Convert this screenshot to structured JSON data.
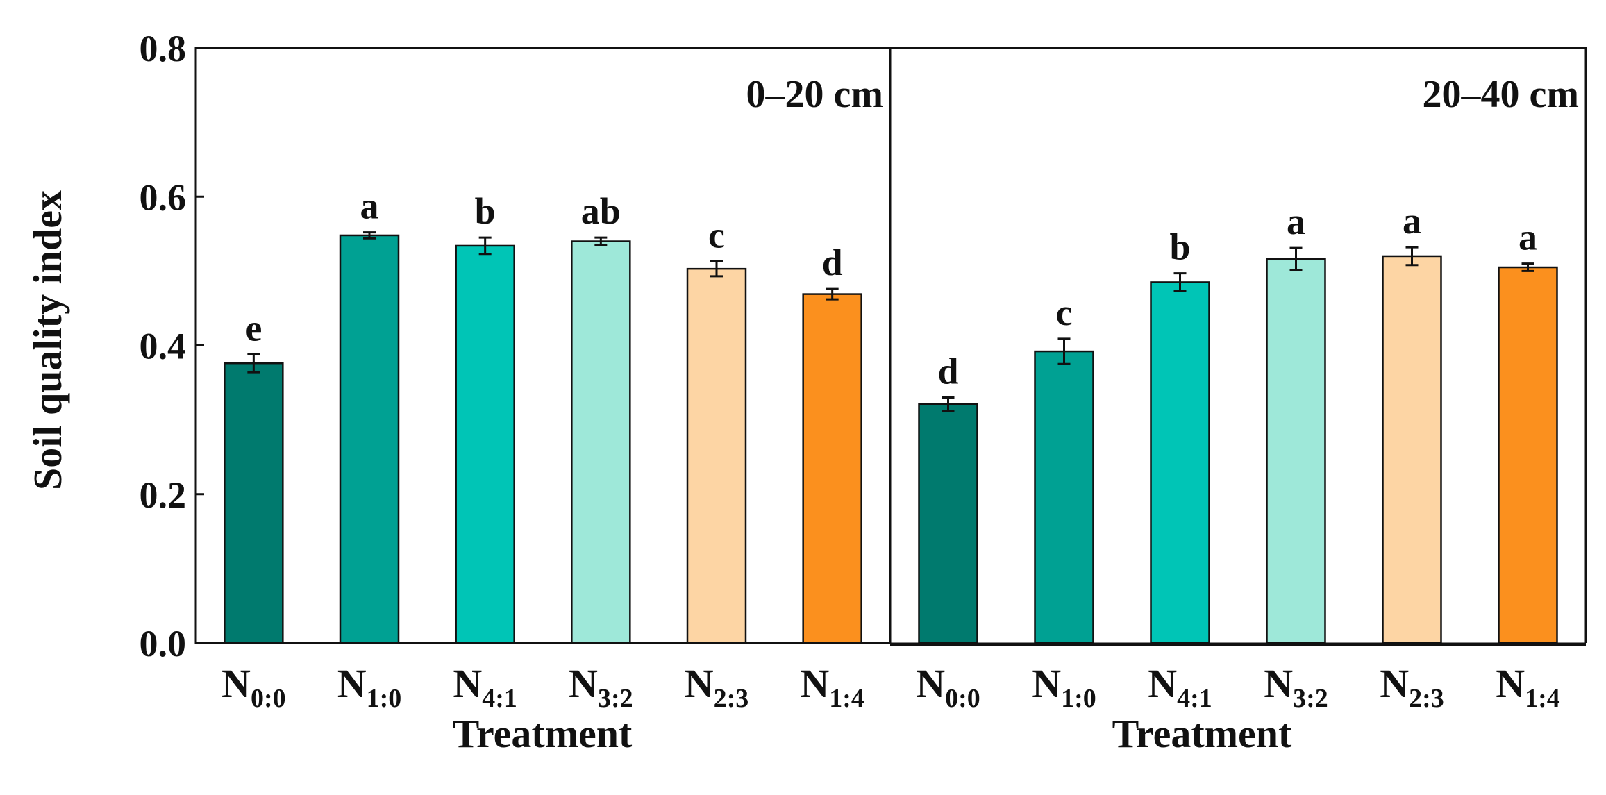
{
  "chart_data": {
    "type": "bar",
    "ylabel": "Soil quality index",
    "xlabel": "Treatment",
    "ylim": [
      0,
      0.8
    ],
    "yticks": [
      "0.0",
      "0.2",
      "0.4",
      "0.6",
      "0.8"
    ],
    "categories": [
      {
        "main": "N",
        "sub": "0:0"
      },
      {
        "main": "N",
        "sub": "1:0"
      },
      {
        "main": "N",
        "sub": "4:1"
      },
      {
        "main": "N",
        "sub": "3:2"
      },
      {
        "main": "N",
        "sub": "2:3"
      },
      {
        "main": "N",
        "sub": "1:4"
      }
    ],
    "colors": [
      "#007A6E",
      "#00A193",
      "#00C5B6",
      "#9EE8D9",
      "#FDD5A4",
      "#FB901E"
    ],
    "panels": [
      {
        "label": "0–20 cm",
        "values": [
          0.376,
          0.548,
          0.534,
          0.54,
          0.503,
          0.469
        ],
        "errors": [
          0.012,
          0.004,
          0.011,
          0.005,
          0.01,
          0.007
        ],
        "letters": [
          "e",
          "a",
          "b",
          "ab",
          "c",
          "d"
        ]
      },
      {
        "label": "20–40 cm",
        "values": [
          0.321,
          0.392,
          0.485,
          0.516,
          0.52,
          0.505
        ],
        "errors": [
          0.009,
          0.017,
          0.012,
          0.015,
          0.012,
          0.005
        ],
        "letters": [
          "d",
          "c",
          "b",
          "a",
          "a",
          "a"
        ]
      }
    ]
  }
}
